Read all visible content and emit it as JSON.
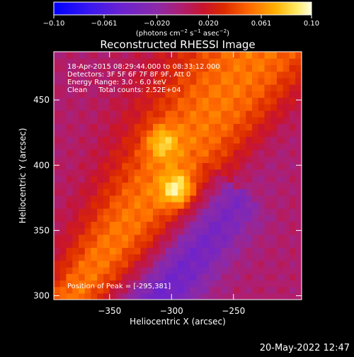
{
  "chart_data": {
    "type": "heatmap",
    "title": "Reconstructed RHESSI Image",
    "xlabel": "Heliocentric X (arcsec)",
    "ylabel": "Heliocentric Y (arcsec)",
    "xlim": [
      -395,
      -195
    ],
    "ylim": [
      297,
      487
    ],
    "xticks": [
      -350,
      -300,
      -250
    ],
    "xtick_labels": [
      "−350",
      "−300",
      "−250"
    ],
    "yticks": [
      300,
      350,
      400,
      450
    ],
    "ytick_labels": [
      "300",
      "350",
      "400",
      "450"
    ],
    "colorbar": {
      "range": [
        -0.1,
        0.1
      ],
      "ticks": [
        -0.1,
        -0.061,
        -0.02,
        0.02,
        0.061,
        0.1
      ],
      "tick_labels": [
        "−0.10",
        "−0.061",
        "−0.020",
        "0.020",
        "0.061",
        "0.10"
      ],
      "unit_main": "(photons cm",
      "unit_exp1": "−2",
      "unit_mid1": " s",
      "unit_exp2": "−1",
      "unit_mid2": " asec",
      "unit_exp3": "−2",
      "unit_close": ")"
    },
    "sources": [
      {
        "x": -295,
        "y": 381,
        "peak": 0.1
      },
      {
        "x": -308,
        "y": 418,
        "peak": 0.085
      }
    ],
    "annotations": {
      "time_range": "18-Apr-2015 08:29:44.000 to 08:33:12.000",
      "detectors": "Detectors: 3F 5F 6F 7F 8F 9F, Att 0",
      "energy": "Energy Range: 3.0 - 6.0 keV",
      "clean": "Clean     Total counts: 2.52E+04",
      "peak": "Position of Peak = [-295,381]"
    },
    "timestamp": "20-May-2022 12:47"
  }
}
